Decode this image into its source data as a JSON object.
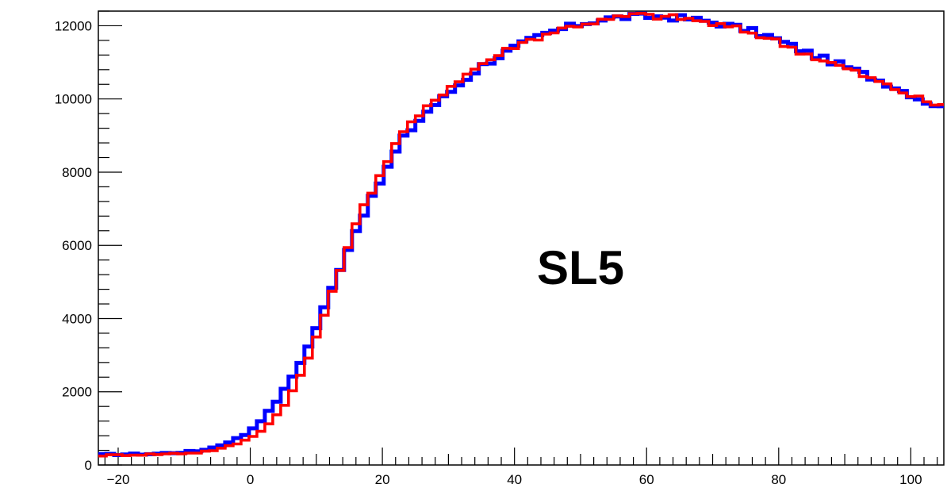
{
  "chart_data": {
    "type": "step",
    "title": "",
    "xlabel": "",
    "ylabel": "",
    "xlim": [
      -23,
      105
    ],
    "ylim": [
      0,
      12400
    ],
    "grid": false,
    "x_ticks": [
      -20,
      0,
      20,
      40,
      60,
      80,
      100
    ],
    "y_ticks": [
      0,
      2000,
      4000,
      6000,
      8000,
      10000,
      12000
    ],
    "annotation": "SL5",
    "series": [
      {
        "color": "#0000ff",
        "points": [
          [
            -23,
            280
          ],
          [
            -20,
            290
          ],
          [
            -15,
            300
          ],
          [
            -10,
            350
          ],
          [
            -8,
            380
          ],
          [
            -5,
            500
          ],
          [
            -3,
            650
          ],
          [
            -1,
            800
          ],
          [
            1,
            1100
          ],
          [
            3,
            1500
          ],
          [
            5,
            2000
          ],
          [
            7,
            2600
          ],
          [
            9,
            3300
          ],
          [
            11,
            4200
          ],
          [
            13,
            5100
          ],
          [
            15,
            6000
          ],
          [
            17,
            6800
          ],
          [
            19,
            7500
          ],
          [
            21,
            8200
          ],
          [
            23,
            8900
          ],
          [
            25,
            9300
          ],
          [
            27,
            9700
          ],
          [
            29,
            10000
          ],
          [
            31,
            10300
          ],
          [
            33,
            10600
          ],
          [
            35,
            10900
          ],
          [
            37,
            11100
          ],
          [
            40,
            11400
          ],
          [
            43,
            11650
          ],
          [
            46,
            11850
          ],
          [
            50,
            12050
          ],
          [
            54,
            12200
          ],
          [
            58,
            12250
          ],
          [
            62,
            12250
          ],
          [
            66,
            12200
          ],
          [
            70,
            12100
          ],
          [
            74,
            11950
          ],
          [
            78,
            11750
          ],
          [
            82,
            11450
          ],
          [
            86,
            11150
          ],
          [
            90,
            10900
          ],
          [
            94,
            10600
          ],
          [
            98,
            10300
          ],
          [
            102,
            9950
          ],
          [
            105,
            9750
          ]
        ]
      },
      {
        "color": "#ff0000",
        "points": [
          [
            -23,
            260
          ],
          [
            -20,
            270
          ],
          [
            -15,
            290
          ],
          [
            -10,
            320
          ],
          [
            -8,
            340
          ],
          [
            -5,
            420
          ],
          [
            -3,
            520
          ],
          [
            -1,
            650
          ],
          [
            1,
            850
          ],
          [
            3,
            1150
          ],
          [
            5,
            1600
          ],
          [
            7,
            2200
          ],
          [
            9,
            3000
          ],
          [
            11,
            4000
          ],
          [
            13,
            5000
          ],
          [
            15,
            6100
          ],
          [
            17,
            7000
          ],
          [
            19,
            7700
          ],
          [
            21,
            8400
          ],
          [
            23,
            9100
          ],
          [
            25,
            9400
          ],
          [
            27,
            9800
          ],
          [
            29,
            10150
          ],
          [
            31,
            10450
          ],
          [
            33,
            10700
          ],
          [
            35,
            10950
          ],
          [
            37,
            11150
          ],
          [
            40,
            11450
          ],
          [
            43,
            11650
          ],
          [
            46,
            11850
          ],
          [
            50,
            12050
          ],
          [
            54,
            12150
          ],
          [
            58,
            12300
          ],
          [
            62,
            12250
          ],
          [
            66,
            12200
          ],
          [
            70,
            12050
          ],
          [
            74,
            11900
          ],
          [
            78,
            11700
          ],
          [
            82,
            11400
          ],
          [
            86,
            11100
          ],
          [
            90,
            10850
          ],
          [
            94,
            10550
          ],
          [
            98,
            10250
          ],
          [
            102,
            9950
          ],
          [
            105,
            9780
          ]
        ]
      }
    ]
  }
}
